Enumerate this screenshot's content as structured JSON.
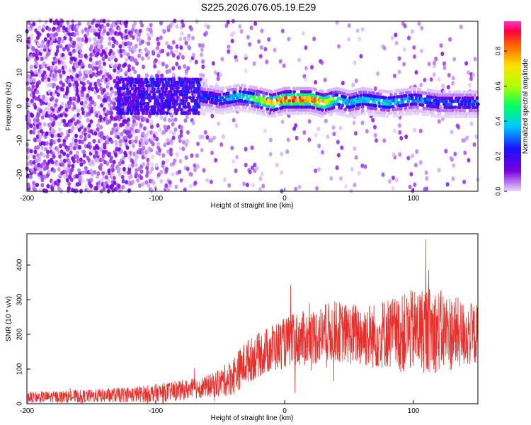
{
  "title": "S225.2026.076.05.19.E29",
  "chart_data": [
    {
      "type": "heatmap",
      "name": "spectrogram",
      "xlabel": "Height of straight line (km)",
      "ylabel": "Frequency (Hz)",
      "xlim": [
        -200,
        150
      ],
      "ylim": [
        -25,
        25
      ],
      "xticks": [
        -200,
        -100,
        0,
        100
      ],
      "xtick_labels": [
        "-200",
        "-100",
        "0",
        "100"
      ],
      "yticks": [
        -20,
        -10,
        0,
        10,
        20
      ],
      "ytick_labels": [
        "-20",
        "-10",
        "0",
        "10",
        "20"
      ],
      "colorbar": {
        "label": "Normalized spectral amplitude",
        "range": [
          0,
          0.97
        ],
        "ticks": [
          0,
          0.2,
          0.4,
          0.6,
          0.8
        ],
        "tick_labels": [
          "0.0",
          "0.2",
          "0.4",
          "0.6",
          "0.8"
        ],
        "colormap": [
          "#e8d8ff",
          "#7b00e0",
          "#1a10ff",
          "#00c8ff",
          "#00ff60",
          "#b0ff00",
          "#ffe000",
          "#ff6000",
          "#ff0040",
          "#ff33cc"
        ]
      },
      "ridge": {
        "description": "high-amplitude band centered near 1-2 Hz",
        "x": [
          -65,
          -50,
          -35,
          -20,
          -10,
          0,
          10,
          20,
          30,
          40,
          50,
          60,
          80,
          100,
          120,
          150
        ],
        "peak_freq": [
          3,
          2,
          3,
          2,
          1,
          2,
          2,
          2,
          1,
          2,
          1,
          2,
          1,
          2,
          1,
          1
        ],
        "peak_amplitude": [
          0.3,
          0.3,
          0.45,
          0.6,
          0.85,
          0.95,
          0.95,
          0.9,
          0.85,
          0.55,
          0.4,
          0.45,
          0.4,
          0.35,
          0.3,
          0.3
        ]
      }
    },
    {
      "type": "line",
      "name": "snr",
      "xlabel": "Height of straight line (km)",
      "ylabel": "SNR (10 * v/v)",
      "xlim": [
        -200,
        150
      ],
      "ylim": [
        0,
        490
      ],
      "xticks": [
        -200,
        -100,
        0,
        100
      ],
      "xtick_labels": [
        "-200",
        "-100",
        "0",
        "100"
      ],
      "yticks": [
        0,
        100,
        200,
        300,
        400
      ],
      "ytick_labels": [
        "0",
        "100",
        "200",
        "300",
        "400"
      ],
      "color": "#e8302c",
      "envelope": {
        "x": [
          -200,
          -150,
          -110,
          -80,
          -60,
          -50,
          -40,
          -30,
          -20,
          -10,
          0,
          10,
          20,
          30,
          40,
          50,
          60,
          70,
          80,
          90,
          100,
          110,
          120,
          130,
          140,
          150
        ],
        "mean": [
          18,
          22,
          28,
          38,
          50,
          60,
          80,
          120,
          140,
          160,
          175,
          185,
          190,
          200,
          210,
          200,
          200,
          195,
          205,
          200,
          210,
          215,
          210,
          205,
          200,
          200
        ],
        "spread": [
          10,
          12,
          15,
          18,
          20,
          25,
          35,
          40,
          40,
          45,
          45,
          50,
          50,
          55,
          55,
          55,
          60,
          60,
          65,
          70,
          75,
          80,
          75,
          70,
          60,
          55
        ]
      }
    }
  ]
}
